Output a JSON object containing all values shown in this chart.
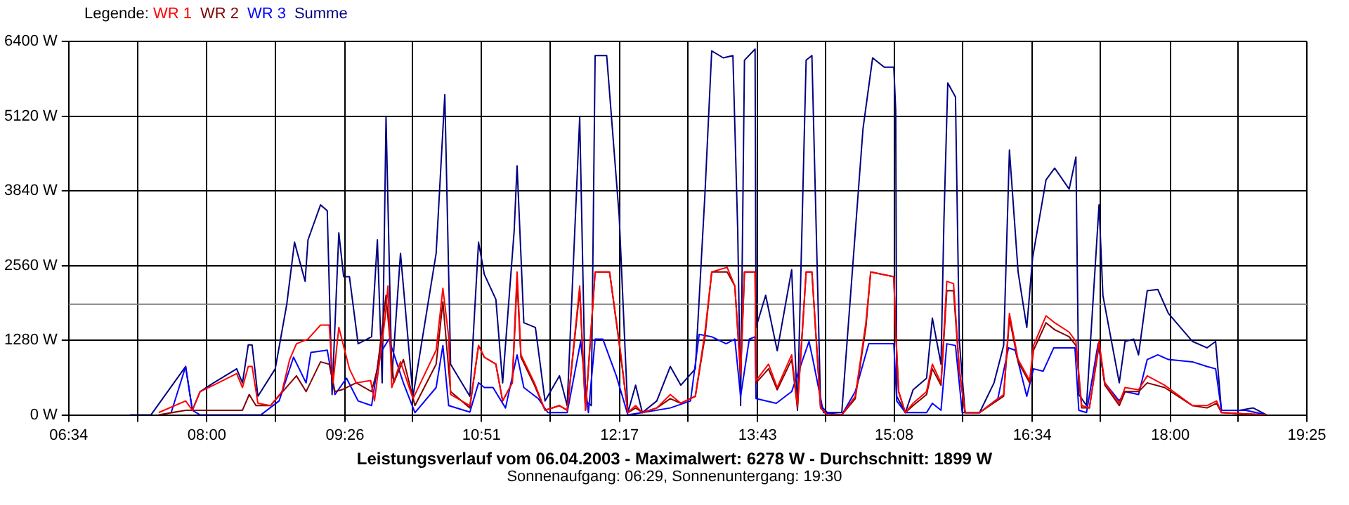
{
  "chart_data": {
    "type": "line",
    "title": "Leistungsverlauf vom 06.04.2003 - Maximalwert: 6278 W - Durchschnitt: 1899 W",
    "subtitle": "Sonnenaufgang: 06:29, Sonnenuntergang: 19:30",
    "legend_title": "Legende:",
    "legend": "top left",
    "grid": true,
    "marker": "none",
    "line_style": "solid",
    "xlim": [
      6.5667,
      19.4167
    ],
    "xticks": [
      {
        "value": 6.5667,
        "label": "06:34"
      },
      {
        "value": 7.2806,
        "label": null
      },
      {
        "value": 8.0,
        "label": "08:00"
      },
      {
        "value": 8.7083,
        "label": null
      },
      {
        "value": 9.4333,
        "label": "09:26"
      },
      {
        "value": 10.1361,
        "label": null
      },
      {
        "value": 10.85,
        "label": "10:51"
      },
      {
        "value": 11.5639,
        "label": null
      },
      {
        "value": 12.2833,
        "label": "12:17"
      },
      {
        "value": 12.9917,
        "label": null
      },
      {
        "value": 13.7167,
        "label": "13:43"
      },
      {
        "value": 14.4194,
        "label": null
      },
      {
        "value": 15.1333,
        "label": "15:08"
      },
      {
        "value": 15.8472,
        "label": null
      },
      {
        "value": 16.5667,
        "label": "16:34"
      },
      {
        "value": 17.275,
        "label": null
      },
      {
        "value": 18.0,
        "label": "18:00"
      },
      {
        "value": 18.7028,
        "label": null
      },
      {
        "value": 19.4167,
        "label": "19:25"
      }
    ],
    "ylim": [
      0,
      6400
    ],
    "yticks": [
      {
        "value": 0,
        "label": "0 W"
      },
      {
        "value": 1280,
        "label": "1280 W"
      },
      {
        "value": 2560,
        "label": "2560 W"
      },
      {
        "value": 3840,
        "label": "3840 W"
      },
      {
        "value": 5120,
        "label": "5120 W"
      },
      {
        "value": 6400,
        "label": "6400 W"
      }
    ],
    "ref_lines": [
      {
        "axis": "y",
        "value": 1899,
        "color": "#808080"
      }
    ],
    "series": [
      {
        "name": "WR 1",
        "color": "#ff0000",
        "x": [
          7.5,
          7.78,
          7.85,
          7.93,
          8.07,
          8.31,
          8.37,
          8.43,
          8.47,
          8.53,
          8.66,
          8.78,
          8.86,
          8.93,
          9.05,
          9.18,
          9.27,
          9.31,
          9.37,
          9.48,
          9.55,
          9.7,
          9.74,
          9.85,
          9.88,
          9.92,
          10.01,
          10.14,
          10.38,
          10.45,
          10.51,
          10.53,
          10.73,
          10.82,
          10.88,
          11.0,
          11.07,
          11.17,
          11.22,
          11.26,
          11.4,
          11.51,
          11.66,
          11.74,
          11.87,
          11.93,
          12.03,
          12.18,
          12.28,
          12.37,
          12.45,
          12.52,
          12.67,
          12.81,
          12.92,
          13.07,
          13.17,
          13.24,
          13.4,
          13.48,
          13.54,
          13.58,
          13.69,
          13.7,
          13.83,
          13.92,
          14.07,
          14.13,
          14.22,
          14.28,
          14.37,
          14.44,
          14.59,
          14.73,
          14.84,
          14.89,
          15.13,
          15.15,
          15.18,
          15.25,
          15.33,
          15.47,
          15.53,
          15.62,
          15.68,
          15.75,
          15.81,
          15.87,
          16.02,
          16.27,
          16.33,
          16.42,
          16.54,
          16.58,
          16.71,
          16.8,
          16.95,
          17.02,
          17.08,
          17.16,
          17.26,
          17.32,
          17.47,
          17.53,
          17.67,
          17.76,
          17.94,
          18.23,
          18.38,
          18.48,
          18.53,
          19.0
        ],
        "values": [
          40,
          240,
          80,
          400,
          510,
          710,
          470,
          830,
          830,
          200,
          160,
          400,
          950,
          1220,
          1300,
          1540,
          1540,
          550,
          1500,
          790,
          550,
          590,
          240,
          1660,
          2210,
          470,
          910,
          280,
          1110,
          2170,
          1340,
          350,
          160,
          1190,
          990,
          870,
          240,
          550,
          2450,
          1030,
          550,
          80,
          160,
          80,
          2210,
          80,
          2450,
          2450,
          1260,
          40,
          160,
          40,
          120,
          350,
          200,
          320,
          1420,
          2450,
          2530,
          2210,
          710,
          2450,
          2450,
          590,
          870,
          470,
          1030,
          160,
          2450,
          2450,
          120,
          0,
          0,
          320,
          1580,
          2450,
          2370,
          1420,
          400,
          40,
          200,
          400,
          870,
          550,
          2290,
          2250,
          790,
          40,
          40,
          350,
          1740,
          950,
          590,
          1190,
          1700,
          1580,
          1420,
          1260,
          160,
          120,
          1260,
          550,
          200,
          470,
          430,
          670,
          510,
          160,
          160,
          240,
          40,
          0
        ]
      },
      {
        "name": "WR 2",
        "color": "#800000",
        "x": [
          7.5,
          7.78,
          8.37,
          8.44,
          8.51,
          8.66,
          8.93,
          9.03,
          9.18,
          9.27,
          9.33,
          9.4,
          9.55,
          9.71,
          9.77,
          9.86,
          9.94,
          10.04,
          10.16,
          10.38,
          10.45,
          10.53,
          10.73,
          10.82,
          10.88,
          11.0,
          11.07,
          11.17,
          11.22,
          11.26,
          11.4,
          11.51,
          11.66,
          11.74,
          11.87,
          11.93,
          12.03,
          12.18,
          12.28,
          12.37,
          12.45,
          12.52,
          12.67,
          12.81,
          12.92,
          13.07,
          13.17,
          13.24,
          13.4,
          13.48,
          13.54,
          13.58,
          13.69,
          13.7,
          13.83,
          13.92,
          14.07,
          14.13,
          14.22,
          14.28,
          14.37,
          14.44,
          14.59,
          14.73,
          14.84,
          14.89,
          15.13,
          15.15,
          15.18,
          15.25,
          15.33,
          15.47,
          15.53,
          15.62,
          15.68,
          15.75,
          15.81,
          15.87,
          16.02,
          16.27,
          16.33,
          16.42,
          16.54,
          16.58,
          16.71,
          16.8,
          16.95,
          17.02,
          17.08,
          17.16,
          17.26,
          17.32,
          17.47,
          17.53,
          17.67,
          17.76,
          17.94,
          18.23,
          18.38,
          18.48,
          18.53,
          19.0
        ],
        "values": [
          0,
          80,
          80,
          350,
          160,
          160,
          670,
          400,
          910,
          870,
          400,
          430,
          550,
          400,
          790,
          2050,
          550,
          950,
          160,
          870,
          1940,
          400,
          120,
          1190,
          990,
          870,
          240,
          550,
          2290,
          990,
          510,
          80,
          160,
          80,
          2130,
          80,
          2450,
          2450,
          1220,
          40,
          120,
          40,
          120,
          280,
          200,
          320,
          1340,
          2450,
          2450,
          2210,
          670,
          2450,
          2450,
          550,
          790,
          430,
          950,
          120,
          2450,
          2450,
          120,
          0,
          0,
          280,
          1500,
          2450,
          2370,
          1420,
          400,
          40,
          160,
          350,
          790,
          510,
          2130,
          2130,
          750,
          40,
          40,
          320,
          1660,
          910,
          550,
          1110,
          1580,
          1460,
          1340,
          1190,
          120,
          120,
          1190,
          510,
          160,
          400,
          400,
          550,
          470,
          160,
          120,
          200,
          40,
          0
        ]
      },
      {
        "name": "WR 3",
        "color": "#0000ff",
        "x": [
          7.63,
          7.78,
          7.85,
          7.93,
          8.56,
          8.75,
          8.9,
          9.03,
          9.08,
          9.25,
          9.33,
          9.45,
          9.57,
          9.71,
          9.79,
          9.89,
          10.04,
          10.16,
          10.38,
          10.45,
          10.51,
          10.73,
          10.82,
          10.88,
          10.97,
          11.1,
          11.22,
          11.29,
          11.44,
          11.54,
          11.74,
          11.88,
          11.96,
          12.03,
          12.11,
          12.25,
          12.37,
          12.52,
          12.81,
          13.02,
          13.11,
          13.24,
          13.39,
          13.48,
          13.54,
          13.63,
          13.69,
          13.7,
          13.91,
          14.07,
          14.25,
          14.29,
          14.4,
          14.59,
          14.73,
          14.87,
          15.13,
          15.16,
          15.25,
          15.47,
          15.53,
          15.62,
          15.68,
          15.77,
          15.84,
          16.02,
          16.21,
          16.32,
          16.39,
          16.51,
          16.58,
          16.68,
          16.79,
          17.01,
          17.05,
          17.13,
          17.25,
          17.32,
          17.47,
          17.53,
          17.67,
          17.76,
          17.87,
          17.98,
          18.23,
          18.38,
          18.47,
          18.53,
          18.78,
          19.0
        ],
        "values": [
          40,
          830,
          80,
          0,
          0,
          240,
          990,
          550,
          1070,
          1110,
          350,
          630,
          240,
          160,
          1030,
          1300,
          550,
          40,
          470,
          1190,
          160,
          50,
          550,
          470,
          470,
          120,
          1030,
          470,
          280,
          40,
          40,
          1260,
          40,
          1300,
          1300,
          670,
          0,
          40,
          120,
          240,
          1380,
          1340,
          1220,
          1300,
          320,
          1300,
          1340,
          280,
          200,
          400,
          1260,
          950,
          40,
          0,
          400,
          1220,
          1220,
          240,
          40,
          40,
          200,
          80,
          1220,
          1190,
          40,
          40,
          280,
          1150,
          1110,
          320,
          790,
          750,
          1150,
          1150,
          80,
          40,
          1220,
          550,
          240,
          400,
          350,
          950,
          1030,
          950,
          910,
          830,
          790,
          80,
          80,
          0
        ]
      },
      {
        "name": "Summe",
        "color": "#000080",
        "x": [
          7.2,
          7.42,
          7.78,
          7.85,
          7.93,
          8.07,
          8.31,
          8.37,
          8.43,
          8.47,
          8.53,
          8.71,
          8.83,
          8.91,
          9.02,
          9.05,
          9.18,
          9.25,
          9.3,
          9.37,
          9.42,
          9.48,
          9.57,
          9.71,
          9.77,
          9.82,
          9.86,
          9.92,
          10.01,
          10.14,
          10.38,
          10.47,
          10.53,
          10.73,
          10.82,
          10.88,
          11.0,
          11.07,
          11.19,
          11.22,
          11.29,
          11.41,
          11.51,
          11.66,
          11.74,
          11.87,
          11.93,
          11.99,
          12.03,
          12.15,
          12.28,
          12.37,
          12.45,
          12.52,
          12.67,
          12.81,
          12.92,
          13.07,
          13.17,
          13.24,
          13.36,
          13.46,
          13.51,
          13.54,
          13.58,
          13.69,
          13.7,
          13.8,
          13.92,
          14.07,
          14.13,
          14.22,
          14.28,
          14.37,
          14.44,
          14.59,
          14.81,
          14.91,
          15.03,
          15.13,
          15.15,
          15.16,
          15.25,
          15.33,
          15.47,
          15.53,
          15.62,
          15.65,
          15.69,
          15.77,
          15.81,
          15.87,
          16.02,
          16.17,
          16.27,
          16.33,
          16.42,
          16.51,
          16.57,
          16.71,
          16.8,
          16.95,
          17.02,
          17.05,
          17.13,
          17.26,
          17.3,
          17.47,
          17.53,
          17.62,
          17.67,
          17.76,
          17.87,
          17.98,
          18.23,
          18.38,
          18.47,
          18.53,
          18.72,
          18.86,
          19.0
        ],
        "values": [
          0,
          0,
          830,
          80,
          400,
          550,
          790,
          550,
          1200,
          1200,
          320,
          790,
          1900,
          2960,
          2290,
          3000,
          3600,
          3500,
          350,
          3120,
          2370,
          2370,
          1220,
          1340,
          3000,
          550,
          5100,
          630,
          2770,
          320,
          2770,
          5490,
          870,
          320,
          2960,
          2410,
          1980,
          550,
          3160,
          4270,
          1580,
          1500,
          240,
          670,
          160,
          5100,
          240,
          160,
          6160,
          6160,
          3400,
          40,
          510,
          40,
          240,
          830,
          510,
          790,
          3790,
          6240,
          6120,
          6160,
          3160,
          160,
          6080,
          6270,
          1500,
          2050,
          1100,
          2490,
          80,
          6080,
          6160,
          160,
          40,
          40,
          4900,
          6120,
          5960,
          5960,
          5210,
          320,
          40,
          430,
          630,
          1660,
          870,
          3320,
          5690,
          5450,
          1260,
          40,
          40,
          550,
          1190,
          4540,
          2450,
          1500,
          2690,
          4030,
          4230,
          3870,
          4420,
          350,
          160,
          3600,
          2050,
          550,
          1260,
          1300,
          1030,
          2130,
          2150,
          1740,
          1260,
          1150,
          1260,
          80,
          80,
          120,
          0
        ]
      }
    ]
  }
}
